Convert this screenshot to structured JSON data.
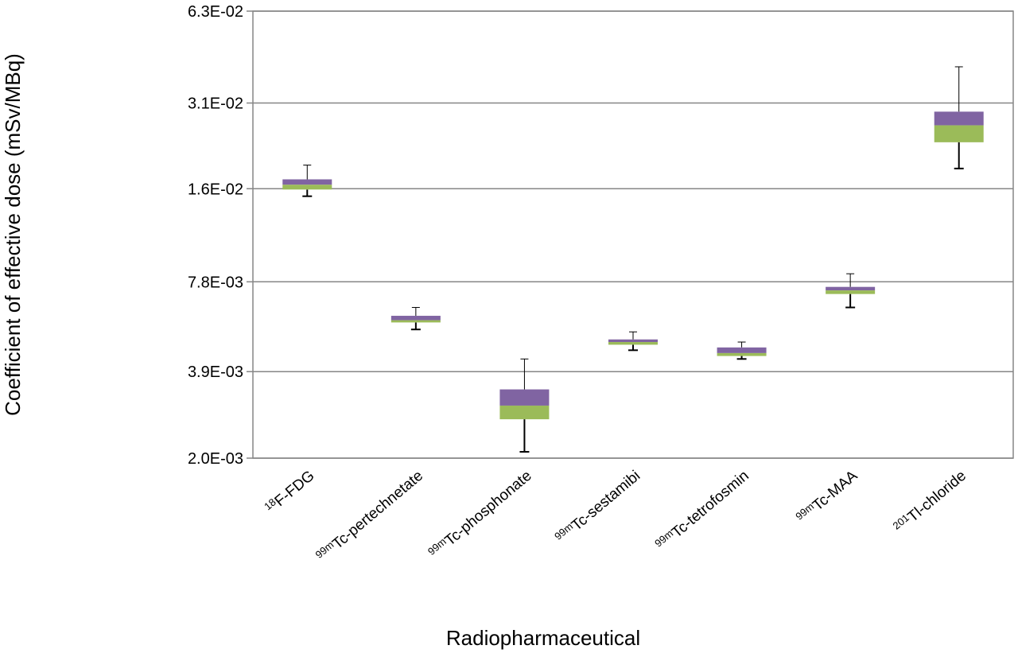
{
  "chart_data": {
    "type": "box",
    "ylabel": "Coefficient of effective dose (mSv/MBq)",
    "xlabel": "Radiopharmaceutical",
    "y_scale": "log",
    "ylim": [
      0.002,
      0.063
    ],
    "y_ticks": [
      0.002,
      0.0039,
      0.0078,
      0.016,
      0.031,
      0.063
    ],
    "y_tick_labels": [
      "2.0E-03",
      "3.9E-03",
      "7.8E-03",
      "1.6E-02",
      "3.1E-02",
      "6.3E-02"
    ],
    "grid": true,
    "colors": {
      "upper_box": "#8064a2",
      "lower_box": "#9bbb59",
      "whisker": "#000000",
      "grid": "#868686"
    },
    "categories": [
      {
        "sup": "18",
        "name": "F-FDG"
      },
      {
        "sup": "99m",
        "name": "Tc-pertechnetate"
      },
      {
        "sup": "99m",
        "name": "Tc-phosphonate"
      },
      {
        "sup": "99m",
        "name": "Tc-sestamibi"
      },
      {
        "sup": "99m",
        "name": "Tc-tetrofosmin"
      },
      {
        "sup": "99m",
        "name": "Tc-MAA"
      },
      {
        "sup": "201",
        "name": "Tl-chloride"
      }
    ],
    "boxes": [
      {
        "min": 0.0151,
        "q1": 0.0159,
        "median": 0.0165,
        "q3": 0.0172,
        "max": 0.0192
      },
      {
        "min": 0.0054,
        "q1": 0.0057,
        "median": 0.0058,
        "q3": 0.006,
        "max": 0.0064
      },
      {
        "min": 0.0021,
        "q1": 0.0027,
        "median": 0.003,
        "q3": 0.0034,
        "max": 0.0043
      },
      {
        "min": 0.0046,
        "q1": 0.0048,
        "median": 0.0049,
        "q3": 0.005,
        "max": 0.0053
      },
      {
        "min": 0.0043,
        "q1": 0.0044,
        "median": 0.0045,
        "q3": 0.0047,
        "max": 0.0049
      },
      {
        "min": 0.0064,
        "q1": 0.0071,
        "median": 0.0073,
        "q3": 0.0075,
        "max": 0.0083
      },
      {
        "min": 0.0187,
        "q1": 0.0229,
        "median": 0.0261,
        "q3": 0.029,
        "max": 0.041
      }
    ]
  }
}
